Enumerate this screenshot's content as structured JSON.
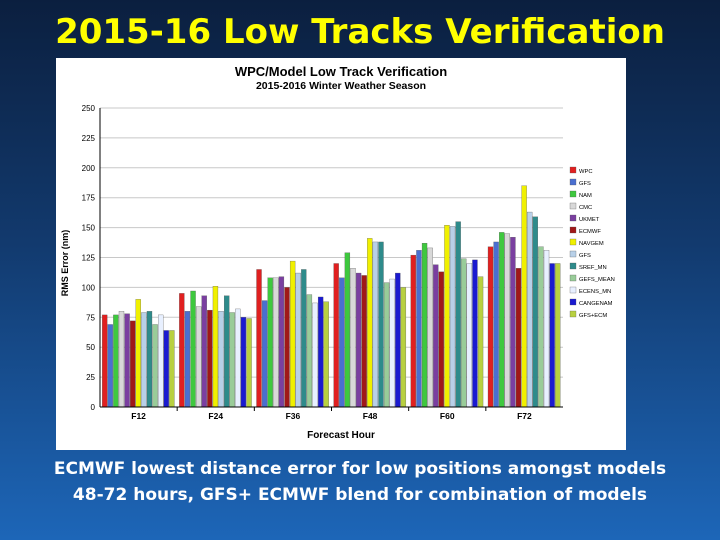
{
  "slide": {
    "title": "2015-16 Low Tracks Verification",
    "caption_line1": "ECMWF lowest distance error for low positions amongst models",
    "caption_line2": "48-72 hours, GFS+ ECMWF blend for combination of models"
  },
  "chart_data": {
    "type": "bar",
    "title": "WPC/Model Low Track Verification",
    "subtitle": "2015-2016 Winter Weather Season",
    "xlabel": "Forecast Hour",
    "ylabel": "RMS Error (nm)",
    "ylim": [
      0,
      250
    ],
    "yticks": [
      0,
      25,
      50,
      75,
      100,
      125,
      150,
      175,
      200,
      225,
      250
    ],
    "grid": "horizontal",
    "legend": "right",
    "categories": [
      "F12",
      "F24",
      "F36",
      "F48",
      "F60",
      "F72"
    ],
    "series": [
      {
        "name": "WPC",
        "color": "#e02020",
        "values": [
          77,
          95,
          115,
          120,
          127,
          134
        ]
      },
      {
        "name": "GFS",
        "color": "#4a6fd0",
        "values": [
          69,
          80,
          89,
          108,
          131,
          138
        ]
      },
      {
        "name": "NAM",
        "color": "#3ec83e",
        "values": [
          77,
          97,
          108,
          129,
          137,
          146
        ]
      },
      {
        "name": "CMC",
        "color": "#d8d8d8",
        "values": [
          80,
          84,
          108,
          116,
          133,
          145
        ]
      },
      {
        "name": "UKMET",
        "color": "#7a3fa0",
        "values": [
          78,
          93,
          109,
          112,
          119,
          142
        ]
      },
      {
        "name": "ECMWF",
        "color": "#a01818",
        "values": [
          72,
          81,
          100,
          110,
          113,
          116
        ]
      },
      {
        "name": "NAVGEM",
        "color": "#f0f000",
        "values": [
          90,
          101,
          122,
          141,
          152,
          185
        ]
      },
      {
        "name": "GFS",
        "color": "#b8d0e8",
        "values": [
          79,
          80,
          112,
          138,
          151,
          163
        ]
      },
      {
        "name": "SREF_MN",
        "color": "#2e8b8b",
        "values": [
          80,
          93,
          115,
          138,
          155,
          159
        ]
      },
      {
        "name": "GEFS_MEAN",
        "color": "#99cc99",
        "values": [
          69,
          79,
          94,
          104,
          124,
          134
        ]
      },
      {
        "name": "ECENS_MN",
        "color": "#e8f0ff",
        "values": [
          77,
          82,
          87,
          107,
          120,
          131
        ]
      },
      {
        "name": "CANGENAM",
        "color": "#1a1ad0",
        "values": [
          64,
          75,
          92,
          112,
          123,
          120
        ]
      },
      {
        "name": "GFS+ECM",
        "color": "#b8d040",
        "values": [
          64,
          74,
          88,
          100,
          109,
          120
        ]
      }
    ]
  }
}
